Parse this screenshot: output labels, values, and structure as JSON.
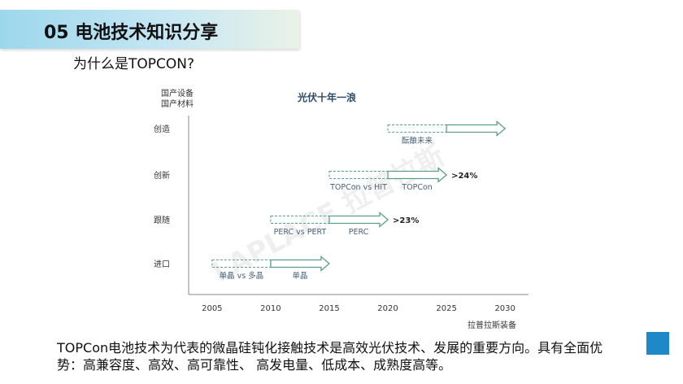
{
  "slide": {
    "section_title": "05  电池技术知识分享",
    "subtitle": "为什么是TOPCON?",
    "paragraph": "TOPCon电池技术为代表的微晶硅钝化接触技术是高效光伏技术、发展的重要方向。具有全面优势：高兼容度、高效、高可靠性、 高发电量、低成本、成熟度高等。",
    "accent_color": "#1e88c8"
  },
  "chart_data": {
    "type": "timeline",
    "title": "光伏十年一浪",
    "ylabel_lines": [
      "国产设备",
      "国产材料"
    ],
    "xlabel": "",
    "x_ticks": [
      2005,
      2010,
      2015,
      2020,
      2025,
      2030
    ],
    "xlim": [
      2003,
      2032
    ],
    "levels": [
      "进口",
      "跟随",
      "创新",
      "创造"
    ],
    "arrows": [
      {
        "level": "进口",
        "segments": [
          {
            "start": 2005,
            "end": 2010,
            "style": "dashed",
            "label": "单晶 vs 多晶"
          },
          {
            "start": 2010,
            "end": 2015,
            "style": "solid",
            "label": "单晶"
          }
        ],
        "annotation": ""
      },
      {
        "level": "跟随",
        "segments": [
          {
            "start": 2010,
            "end": 2015,
            "style": "dashed",
            "label": "PERC vs PERT"
          },
          {
            "start": 2015,
            "end": 2020,
            "style": "solid",
            "label": "PERC"
          }
        ],
        "annotation": ">23%"
      },
      {
        "level": "创新",
        "segments": [
          {
            "start": 2015,
            "end": 2020,
            "style": "dashed",
            "label": "TOPCon vs HIT"
          },
          {
            "start": 2020,
            "end": 2025,
            "style": "solid",
            "label": "TOPCon"
          }
        ],
        "annotation": ">24%"
      },
      {
        "level": "创造",
        "segments": [
          {
            "start": 2020,
            "end": 2025,
            "style": "dashed",
            "label": "酝酿未来"
          },
          {
            "start": 2025,
            "end": 2030,
            "style": "solid",
            "label": ""
          }
        ],
        "annotation": ""
      }
    ],
    "arrow_color": "#5a9f86",
    "source_label": "拉普拉斯装备",
    "watermark": "LAPLACE 拉普拉斯"
  }
}
